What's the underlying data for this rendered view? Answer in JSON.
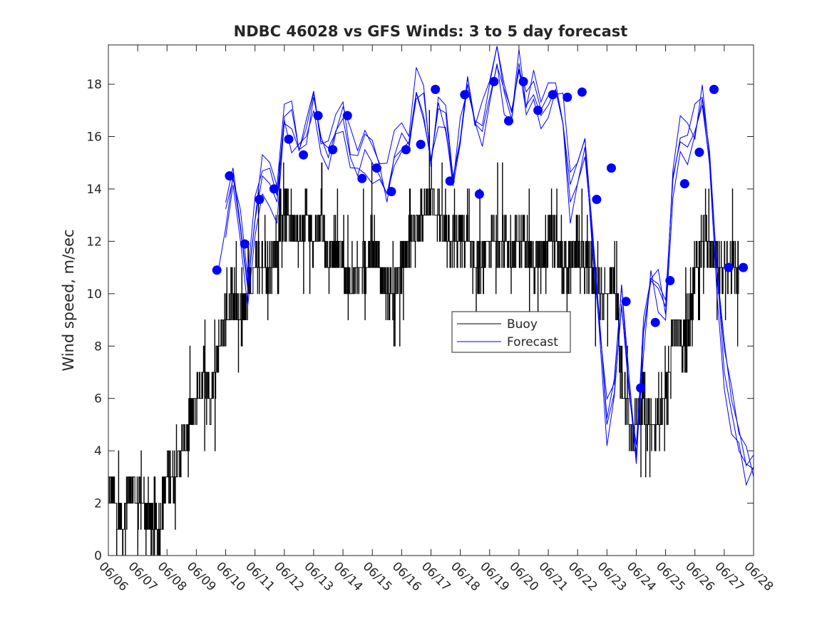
{
  "chart_data": {
    "type": "line",
    "title": "NDBC 46028 vs GFS Winds: 3 to 5 day forecast",
    "xlabel": "",
    "ylabel": "Wind speed, m/sec",
    "xlim": [
      6.0,
      28.0
    ],
    "ylim": [
      0,
      19.5
    ],
    "x_ticks": [
      6,
      7,
      8,
      9,
      10,
      11,
      12,
      13,
      14,
      15,
      16,
      17,
      18,
      19,
      20,
      21,
      22,
      23,
      24,
      25,
      26,
      27,
      28
    ],
    "x_tick_labels": [
      "06/06",
      "06/07",
      "06/08",
      "06/09",
      "06/10",
      "06/11",
      "06/12",
      "06/13",
      "06/14",
      "06/15",
      "06/16",
      "06/17",
      "06/18",
      "06/19",
      "06/20",
      "06/21",
      "06/22",
      "06/23",
      "06/24",
      "06/25",
      "06/26",
      "06/27",
      "06/28"
    ],
    "y_ticks": [
      0,
      2,
      4,
      6,
      8,
      10,
      12,
      14,
      16,
      18
    ],
    "y_tick_labels": [
      "0",
      "2",
      "4",
      "6",
      "8",
      "10",
      "12",
      "14",
      "16",
      "18"
    ],
    "grid": false,
    "legend": {
      "location": "center-right",
      "entries": [
        {
          "label": "Buoy",
          "color": "#000000"
        },
        {
          "label": "Forecast",
          "color": "#0000ff"
        }
      ]
    },
    "series": [
      {
        "name": "Buoy",
        "color": "#000000",
        "style": "noisy-step",
        "x": [
          6.0,
          6.25,
          6.5,
          6.75,
          7.0,
          7.25,
          7.5,
          7.75,
          8.0,
          8.25,
          8.5,
          8.75,
          9.0,
          9.25,
          9.5,
          9.75,
          10.0,
          10.25,
          10.5,
          10.75,
          11.0,
          11.25,
          11.5,
          11.75,
          12.0,
          12.25,
          12.5,
          12.75,
          13.0,
          13.25,
          13.5,
          13.75,
          14.0,
          14.25,
          14.5,
          14.75,
          15.0,
          15.25,
          15.5,
          15.75,
          16.0,
          16.25,
          16.5,
          16.75,
          17.0,
          17.25,
          17.5,
          17.75,
          18.0,
          18.25,
          18.5,
          18.75,
          19.0,
          19.25,
          19.5,
          19.75,
          20.0,
          20.25,
          20.5,
          20.75,
          21.0,
          21.25,
          21.5,
          21.75,
          22.0,
          22.25,
          22.5,
          22.75,
          23.0,
          23.25,
          23.5,
          23.75,
          24.0,
          24.25,
          24.5,
          24.75,
          25.0,
          25.25,
          25.5,
          25.75,
          26.0,
          26.25,
          26.5,
          26.75,
          27.0,
          27.25,
          27.5
        ],
        "y": [
          3,
          2,
          1,
          3,
          2,
          2,
          1,
          1,
          3,
          3,
          4,
          5,
          6,
          7,
          6,
          8,
          9,
          10,
          9,
          10,
          11,
          11,
          11,
          12,
          13,
          13,
          12,
          13,
          12,
          13,
          11,
          12,
          11,
          10,
          11,
          11,
          12,
          11,
          10,
          10,
          11,
          12,
          13,
          13,
          14,
          13,
          12,
          12,
          12,
          12,
          11,
          11,
          12,
          12,
          12,
          12,
          12,
          12,
          11,
          11,
          12,
          12,
          11,
          11,
          12,
          11,
          11,
          10,
          10,
          11,
          7,
          5,
          5,
          6,
          5,
          5,
          6,
          9,
          8,
          8,
          11,
          12,
          12,
          11,
          11,
          11,
          11
        ]
      },
      {
        "name": "Forecast",
        "color": "#0000ff",
        "x": [
          9.75,
          10.0,
          10.25,
          10.5,
          10.75,
          11.0,
          11.25,
          11.5,
          11.75,
          12.0,
          12.25,
          12.5,
          12.75,
          13.0,
          13.25,
          13.5,
          13.75,
          14.0,
          14.25,
          14.5,
          14.75,
          15.0,
          15.25,
          15.5,
          15.75,
          16.0,
          16.25,
          16.5,
          16.75,
          17.0,
          17.25,
          17.5,
          17.75,
          18.0,
          18.25,
          18.5,
          18.75,
          19.0,
          19.25,
          19.5,
          19.75,
          20.0,
          20.25,
          20.5,
          20.75,
          21.0,
          21.25,
          21.5,
          21.75,
          22.0,
          22.25,
          22.5,
          22.75,
          23.0,
          23.25,
          23.5,
          23.75,
          24.0,
          24.25,
          24.5,
          24.75,
          25.0,
          25.25,
          25.5,
          25.75,
          26.0,
          26.25,
          26.5,
          26.75,
          27.0,
          27.25,
          27.5,
          27.75,
          28.0
        ],
        "y": [
          10.9,
          12.5,
          14.5,
          12.5,
          10.2,
          12.8,
          14.5,
          14.2,
          13.5,
          16.5,
          16.3,
          15.5,
          15.7,
          17.5,
          16.0,
          15.2,
          16.2,
          16.7,
          15.2,
          14.5,
          15.5,
          15.0,
          14.5,
          13.8,
          15.2,
          15.5,
          15.8,
          17.7,
          16.8,
          15.0,
          17.3,
          16.2,
          14.4,
          15.8,
          18.0,
          16.5,
          16.2,
          17.5,
          18.7,
          17.8,
          17.0,
          18.5,
          17.2,
          17.6,
          16.8,
          17.2,
          17.8,
          16.5,
          13.5,
          14.2,
          15.6,
          12.0,
          9.0,
          5.0,
          6.2,
          9.5,
          6.5,
          3.5,
          8.5,
          10.5,
          10.2,
          9.5,
          14.5,
          15.8,
          15.6,
          16.2,
          17.2,
          15.0,
          11.0,
          7.0,
          5.5,
          4.0,
          3.5,
          3.3
        ]
      },
      {
        "name": "",
        "kind": "markers",
        "color": "#0000ff",
        "x": [
          9.7,
          10.13,
          10.65,
          11.15,
          11.65,
          12.15,
          12.65,
          13.15,
          13.65,
          14.15,
          14.65,
          15.15,
          15.65,
          16.15,
          16.65,
          17.15,
          17.65,
          18.15,
          18.65,
          19.15,
          19.65,
          20.15,
          20.65,
          21.15,
          21.65,
          22.15,
          22.65,
          23.15,
          23.65,
          24.15,
          24.65,
          25.15,
          25.65,
          26.15,
          26.65,
          27.15,
          27.65
        ],
        "y": [
          10.9,
          14.5,
          11.9,
          13.6,
          14.0,
          15.9,
          15.3,
          16.8,
          15.5,
          16.8,
          14.4,
          14.8,
          13.9,
          15.5,
          15.7,
          17.8,
          14.3,
          17.6,
          13.8,
          18.1,
          16.6,
          18.1,
          17.0,
          17.6,
          17.5,
          17.7,
          13.6,
          14.8,
          9.7,
          6.4,
          8.9,
          10.5,
          14.2,
          15.4,
          17.8,
          11.0,
          11.0
        ]
      }
    ]
  }
}
